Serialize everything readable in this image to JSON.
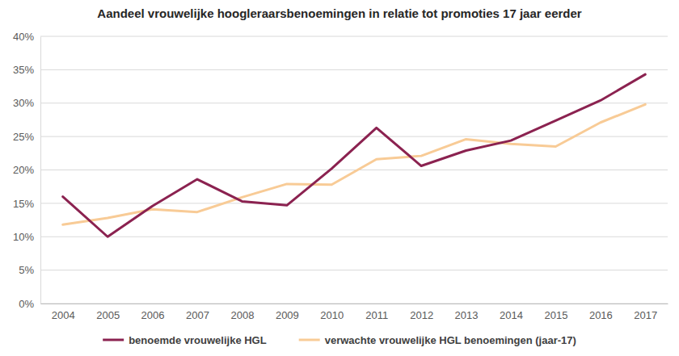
{
  "chart_data": {
    "type": "line",
    "title": "Aandeel vrouwelijke hoogleraarsbenoemingen in relatie tot promoties 17 jaar eerder",
    "categories": [
      "2004",
      "2005",
      "2006",
      "2007",
      "2008",
      "2009",
      "2010",
      "2011",
      "2012",
      "2013",
      "2014",
      "2015",
      "2016",
      "2017"
    ],
    "series": [
      {
        "name": "benoemde vrouwelijke HGL",
        "color": "#8b2250",
        "values": [
          16.0,
          10.0,
          14.6,
          18.6,
          15.3,
          14.7,
          20.2,
          26.3,
          20.6,
          22.9,
          24.4,
          27.4,
          30.4,
          34.3
        ]
      },
      {
        "name": "verwachte vrouwelijke HGL benoemingen (jaar-17)",
        "color": "#f8cb96",
        "values": [
          11.8,
          12.8,
          14.1,
          13.7,
          15.9,
          17.9,
          17.8,
          21.6,
          22.1,
          24.6,
          23.9,
          23.5,
          27.1,
          29.8
        ]
      }
    ],
    "ylim": [
      0,
      40
    ],
    "yticks": [
      {
        "value": 0,
        "label": "0%"
      },
      {
        "value": 5,
        "label": "5%"
      },
      {
        "value": 10,
        "label": "10%"
      },
      {
        "value": 15,
        "label": "15%"
      },
      {
        "value": 20,
        "label": "20%"
      },
      {
        "value": 25,
        "label": "25%"
      },
      {
        "value": 30,
        "label": "30%"
      },
      {
        "value": 35,
        "label": "35%"
      },
      {
        "value": 40,
        "label": "40%"
      }
    ],
    "grid": true,
    "legend": "bottom"
  }
}
